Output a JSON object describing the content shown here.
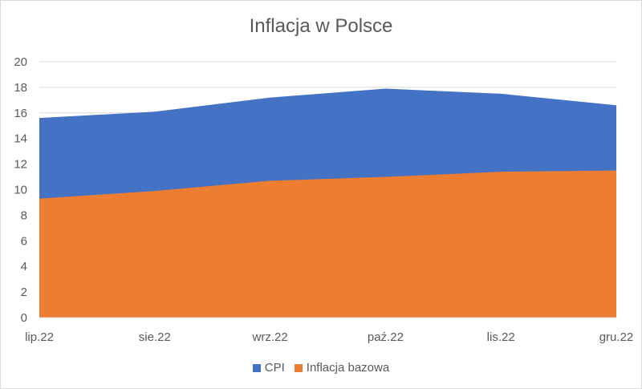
{
  "chart_data": {
    "type": "area",
    "title": "Inflacja w Polsce",
    "categories": [
      "lip.22",
      "sie.22",
      "wrz.22",
      "paź.22",
      "lis.22",
      "gru.22"
    ],
    "series": [
      {
        "name": "CPI",
        "values": [
          15.6,
          16.1,
          17.2,
          17.9,
          17.5,
          16.6
        ],
        "color": "#4472c4"
      },
      {
        "name": "Inflacja bazowa",
        "values": [
          9.3,
          9.9,
          10.7,
          11.0,
          11.4,
          11.5
        ],
        "color": "#ed7d31"
      }
    ],
    "ylim": [
      0,
      20
    ],
    "yticks": [
      "0",
      "2",
      "4",
      "6",
      "8",
      "10",
      "12",
      "14",
      "16",
      "18",
      "20"
    ],
    "grid": true,
    "legend": "bottom"
  }
}
